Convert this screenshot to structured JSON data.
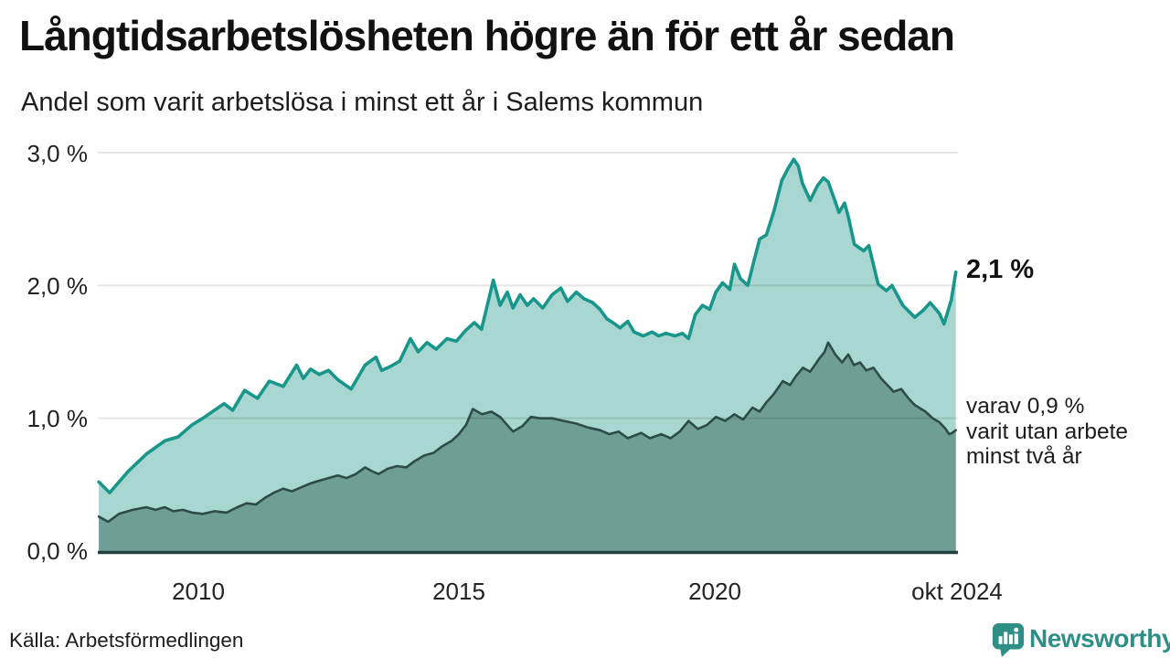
{
  "header": {
    "title": "Långtidsarbetslösheten högre än för ett år sedan",
    "subtitle": "Andel som varit arbetslösa i minst ett år i Salems kommun"
  },
  "colors": {
    "series_total_line": "#18968b",
    "series_total_fill": "#a8d6d0",
    "series_two_years_line": "#2d4b47",
    "series_two_years_fill": "#6f9e97",
    "gridline": "rgba(0,0,0,0.10)",
    "baseline": "#24403c",
    "brand_teal": "#2f8f86"
  },
  "chart_data": {
    "type": "area",
    "title": "Långtidsarbetslösheten högre än för ett år sedan",
    "subtitle": "Andel som varit arbetslösa i minst ett år i Salems kommun",
    "x_domain": [
      2008.05,
      2024.75
    ],
    "y_domain": [
      0,
      3
    ],
    "grid": "horizontal",
    "legend_position": "right-end-labels",
    "y_ticks": [
      {
        "value": 3.0,
        "label": "3,0 %"
      },
      {
        "value": 2.0,
        "label": "2,0 %"
      },
      {
        "value": 1.0,
        "label": "1,0 %"
      },
      {
        "value": 0.0,
        "label": "0,0 %"
      }
    ],
    "x_ticks": [
      {
        "value": 2010,
        "label": "2010"
      },
      {
        "value": 2015,
        "label": "2015"
      },
      {
        "value": 2020,
        "label": "2020"
      },
      {
        "value": 2024.71,
        "label": "okt 2024"
      }
    ],
    "series": [
      {
        "name": "Andel arbetslösa minst ett år",
        "end_value": 2.1,
        "end_label": "2,1 %",
        "points": [
          [
            2008.07,
            0.52
          ],
          [
            2008.28,
            0.44
          ],
          [
            2008.64,
            0.6
          ],
          [
            2008.99,
            0.73
          ],
          [
            2009.35,
            0.83
          ],
          [
            2009.61,
            0.86
          ],
          [
            2009.88,
            0.95
          ],
          [
            2010.09,
            1.0
          ],
          [
            2010.5,
            1.11
          ],
          [
            2010.67,
            1.06
          ],
          [
            2010.9,
            1.21
          ],
          [
            2011.15,
            1.15
          ],
          [
            2011.38,
            1.28
          ],
          [
            2011.65,
            1.24
          ],
          [
            2011.91,
            1.4
          ],
          [
            2012.04,
            1.3
          ],
          [
            2012.18,
            1.37
          ],
          [
            2012.35,
            1.33
          ],
          [
            2012.53,
            1.36
          ],
          [
            2012.71,
            1.29
          ],
          [
            2012.97,
            1.22
          ],
          [
            2013.24,
            1.4
          ],
          [
            2013.45,
            1.46
          ],
          [
            2013.56,
            1.36
          ],
          [
            2013.73,
            1.39
          ],
          [
            2013.91,
            1.43
          ],
          [
            2014.12,
            1.6
          ],
          [
            2014.27,
            1.5
          ],
          [
            2014.44,
            1.57
          ],
          [
            2014.62,
            1.52
          ],
          [
            2014.83,
            1.6
          ],
          [
            2015.01,
            1.58
          ],
          [
            2015.19,
            1.66
          ],
          [
            2015.36,
            1.72
          ],
          [
            2015.5,
            1.67
          ],
          [
            2015.73,
            2.04
          ],
          [
            2015.86,
            1.85
          ],
          [
            2016.0,
            1.95
          ],
          [
            2016.11,
            1.83
          ],
          [
            2016.25,
            1.93
          ],
          [
            2016.39,
            1.85
          ],
          [
            2016.51,
            1.9
          ],
          [
            2016.69,
            1.83
          ],
          [
            2016.87,
            1.93
          ],
          [
            2017.04,
            1.98
          ],
          [
            2017.17,
            1.88
          ],
          [
            2017.34,
            1.95
          ],
          [
            2017.49,
            1.9
          ],
          [
            2017.66,
            1.87
          ],
          [
            2017.8,
            1.82
          ],
          [
            2017.93,
            1.75
          ],
          [
            2018.05,
            1.72
          ],
          [
            2018.19,
            1.68
          ],
          [
            2018.34,
            1.73
          ],
          [
            2018.46,
            1.65
          ],
          [
            2018.64,
            1.62
          ],
          [
            2018.81,
            1.65
          ],
          [
            2018.94,
            1.62
          ],
          [
            2019.08,
            1.64
          ],
          [
            2019.26,
            1.62
          ],
          [
            2019.4,
            1.64
          ],
          [
            2019.52,
            1.6
          ],
          [
            2019.65,
            1.78
          ],
          [
            2019.79,
            1.85
          ],
          [
            2019.93,
            1.82
          ],
          [
            2020.05,
            1.95
          ],
          [
            2020.18,
            2.02
          ],
          [
            2020.32,
            1.97
          ],
          [
            2020.41,
            2.16
          ],
          [
            2020.53,
            2.05
          ],
          [
            2020.67,
            2.0
          ],
          [
            2020.8,
            2.2
          ],
          [
            2020.9,
            2.35
          ],
          [
            2021.03,
            2.38
          ],
          [
            2021.17,
            2.55
          ],
          [
            2021.33,
            2.79
          ],
          [
            2021.45,
            2.88
          ],
          [
            2021.56,
            2.95
          ],
          [
            2021.65,
            2.9
          ],
          [
            2021.73,
            2.77
          ],
          [
            2021.88,
            2.64
          ],
          [
            2022.02,
            2.75
          ],
          [
            2022.14,
            2.81
          ],
          [
            2022.23,
            2.78
          ],
          [
            2022.35,
            2.65
          ],
          [
            2022.44,
            2.55
          ],
          [
            2022.55,
            2.62
          ],
          [
            2022.62,
            2.52
          ],
          [
            2022.74,
            2.31
          ],
          [
            2022.92,
            2.26
          ],
          [
            2023.02,
            2.3
          ],
          [
            2023.2,
            2.01
          ],
          [
            2023.36,
            1.96
          ],
          [
            2023.47,
            2.0
          ],
          [
            2023.68,
            1.85
          ],
          [
            2023.91,
            1.76
          ],
          [
            2024.07,
            1.81
          ],
          [
            2024.21,
            1.87
          ],
          [
            2024.39,
            1.79
          ],
          [
            2024.48,
            1.71
          ],
          [
            2024.62,
            1.89
          ],
          [
            2024.71,
            2.1
          ]
        ]
      },
      {
        "name": "varav utan arbete minst två år",
        "end_value": 0.9,
        "end_label": "varav 0,9 % varit utan arbete minst två år",
        "points": [
          [
            2008.07,
            0.26
          ],
          [
            2008.25,
            0.22
          ],
          [
            2008.46,
            0.28
          ],
          [
            2008.73,
            0.31
          ],
          [
            2008.99,
            0.33
          ],
          [
            2009.17,
            0.31
          ],
          [
            2009.35,
            0.33
          ],
          [
            2009.52,
            0.3
          ],
          [
            2009.7,
            0.31
          ],
          [
            2009.88,
            0.29
          ],
          [
            2010.09,
            0.28
          ],
          [
            2010.32,
            0.3
          ],
          [
            2010.55,
            0.29
          ],
          [
            2010.76,
            0.33
          ],
          [
            2010.94,
            0.36
          ],
          [
            2011.12,
            0.35
          ],
          [
            2011.29,
            0.4
          ],
          [
            2011.47,
            0.44
          ],
          [
            2011.65,
            0.47
          ],
          [
            2011.82,
            0.45
          ],
          [
            2012.0,
            0.48
          ],
          [
            2012.18,
            0.51
          ],
          [
            2012.35,
            0.53
          ],
          [
            2012.53,
            0.55
          ],
          [
            2012.71,
            0.57
          ],
          [
            2012.88,
            0.55
          ],
          [
            2013.06,
            0.58
          ],
          [
            2013.24,
            0.63
          ],
          [
            2013.38,
            0.6
          ],
          [
            2013.5,
            0.58
          ],
          [
            2013.68,
            0.62
          ],
          [
            2013.86,
            0.64
          ],
          [
            2014.04,
            0.63
          ],
          [
            2014.21,
            0.68
          ],
          [
            2014.39,
            0.72
          ],
          [
            2014.57,
            0.74
          ],
          [
            2014.74,
            0.79
          ],
          [
            2014.92,
            0.83
          ],
          [
            2015.06,
            0.88
          ],
          [
            2015.2,
            0.95
          ],
          [
            2015.33,
            1.07
          ],
          [
            2015.51,
            1.03
          ],
          [
            2015.69,
            1.05
          ],
          [
            2015.86,
            1.01
          ],
          [
            2016.11,
            0.9
          ],
          [
            2016.29,
            0.94
          ],
          [
            2016.46,
            1.01
          ],
          [
            2016.64,
            1.0
          ],
          [
            2016.87,
            1.0
          ],
          [
            2017.1,
            0.98
          ],
          [
            2017.34,
            0.96
          ],
          [
            2017.57,
            0.93
          ],
          [
            2017.8,
            0.91
          ],
          [
            2017.98,
            0.88
          ],
          [
            2018.16,
            0.9
          ],
          [
            2018.34,
            0.85
          ],
          [
            2018.6,
            0.89
          ],
          [
            2018.77,
            0.85
          ],
          [
            2018.99,
            0.88
          ],
          [
            2019.17,
            0.85
          ],
          [
            2019.35,
            0.9
          ],
          [
            2019.52,
            0.98
          ],
          [
            2019.7,
            0.92
          ],
          [
            2019.88,
            0.95
          ],
          [
            2020.05,
            1.01
          ],
          [
            2020.23,
            0.98
          ],
          [
            2020.41,
            1.03
          ],
          [
            2020.58,
            0.99
          ],
          [
            2020.76,
            1.08
          ],
          [
            2020.9,
            1.05
          ],
          [
            2021.03,
            1.12
          ],
          [
            2021.17,
            1.18
          ],
          [
            2021.35,
            1.28
          ],
          [
            2021.49,
            1.25
          ],
          [
            2021.61,
            1.32
          ],
          [
            2021.74,
            1.38
          ],
          [
            2021.88,
            1.35
          ],
          [
            2022.06,
            1.45
          ],
          [
            2022.16,
            1.5
          ],
          [
            2022.23,
            1.57
          ],
          [
            2022.37,
            1.48
          ],
          [
            2022.5,
            1.42
          ],
          [
            2022.62,
            1.48
          ],
          [
            2022.73,
            1.4
          ],
          [
            2022.85,
            1.42
          ],
          [
            2022.97,
            1.36
          ],
          [
            2023.11,
            1.38
          ],
          [
            2023.26,
            1.3
          ],
          [
            2023.38,
            1.25
          ],
          [
            2023.5,
            1.2
          ],
          [
            2023.65,
            1.22
          ],
          [
            2023.79,
            1.15
          ],
          [
            2023.91,
            1.1
          ],
          [
            2024.12,
            1.05
          ],
          [
            2024.26,
            1.0
          ],
          [
            2024.39,
            0.97
          ],
          [
            2024.51,
            0.92
          ],
          [
            2024.58,
            0.88
          ],
          [
            2024.64,
            0.89
          ],
          [
            2024.71,
            0.91
          ]
        ]
      }
    ]
  },
  "annotations": {
    "total_end_label": "2,1 %",
    "two_year_lines": [
      "varav 0,9 %",
      "varit utan arbete",
      "minst två år"
    ]
  },
  "footer": {
    "source": "Källa: Arbetsförmedlingen",
    "brand": "Newsworthy",
    "logo_icon": "bar-chart-speech-bubble-icon"
  }
}
